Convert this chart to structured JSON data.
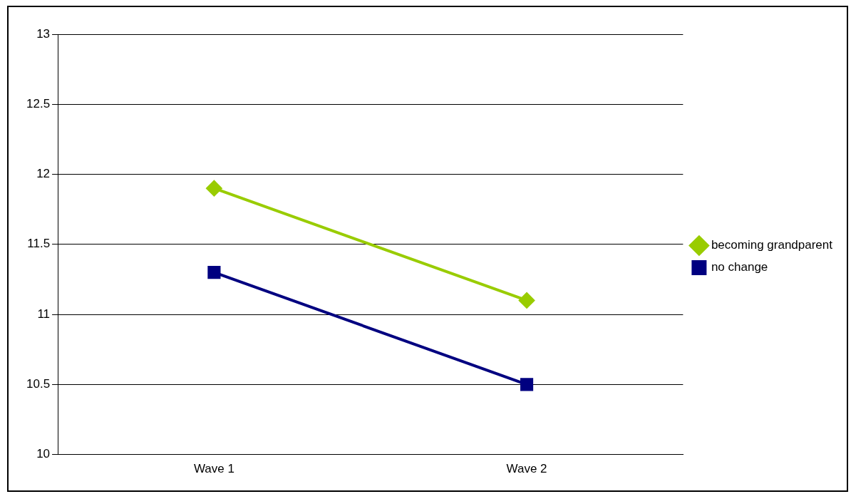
{
  "chart_data": {
    "type": "line",
    "categories": [
      "Wave 1",
      "Wave 2"
    ],
    "series": [
      {
        "name": "becoming grandparent",
        "color": "#99cc00",
        "values": [
          11.9,
          11.1
        ],
        "marker": "diamond"
      },
      {
        "name": "no change",
        "color": "#000080",
        "values": [
          11.3,
          10.5
        ],
        "marker": "square"
      }
    ],
    "ylim": [
      10,
      13
    ],
    "yticks": [
      10,
      10.5,
      11,
      11.5,
      12,
      12.5,
      13
    ],
    "grid": "y",
    "legend": "right",
    "line_style": "solid"
  }
}
